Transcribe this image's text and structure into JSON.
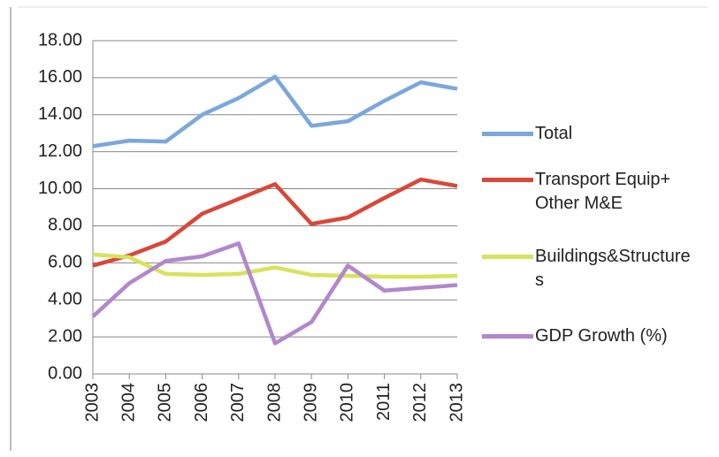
{
  "chart_data": {
    "type": "line",
    "categories": [
      "2003",
      "2004",
      "2005",
      "2006",
      "2007",
      "2008",
      "2009",
      "2010",
      "2011",
      "2012",
      "2013"
    ],
    "series": [
      {
        "name": "Total",
        "color": "#7ba7dd",
        "values": [
          12.3,
          12.6,
          12.55,
          14.0,
          14.9,
          16.05,
          13.4,
          13.65,
          14.75,
          15.75,
          15.4
        ]
      },
      {
        "name": "Transport Equip+ Other M&E",
        "color": "#d9473a",
        "values": [
          5.85,
          6.4,
          7.15,
          8.65,
          9.45,
          10.25,
          8.1,
          8.45,
          9.5,
          10.5,
          10.15
        ]
      },
      {
        "name": "Buildings&Structures",
        "color": "#d7e35c",
        "values": [
          6.45,
          6.3,
          5.4,
          5.35,
          5.4,
          5.75,
          5.35,
          5.3,
          5.25,
          5.25,
          5.3
        ]
      },
      {
        "name": "GDP Growth (%)",
        "color": "#b287cc",
        "values": [
          3.1,
          4.9,
          6.1,
          6.35,
          7.05,
          1.65,
          2.8,
          5.85,
          4.5,
          4.65,
          4.8
        ]
      }
    ],
    "ylim": [
      0,
      18
    ],
    "yticks": [
      {
        "value": 0,
        "label": "0.00"
      },
      {
        "value": 2,
        "label": "2.00"
      },
      {
        "value": 4,
        "label": "4.00"
      },
      {
        "value": 6,
        "label": "6.00"
      },
      {
        "value": 8,
        "label": "8.00"
      },
      {
        "value": 10,
        "label": "10.00"
      },
      {
        "value": 12,
        "label": "12.00"
      },
      {
        "value": 14,
        "label": "14.00"
      },
      {
        "value": 16,
        "label": "16.00"
      },
      {
        "value": 18,
        "label": "18.00"
      }
    ],
    "grid": true
  }
}
